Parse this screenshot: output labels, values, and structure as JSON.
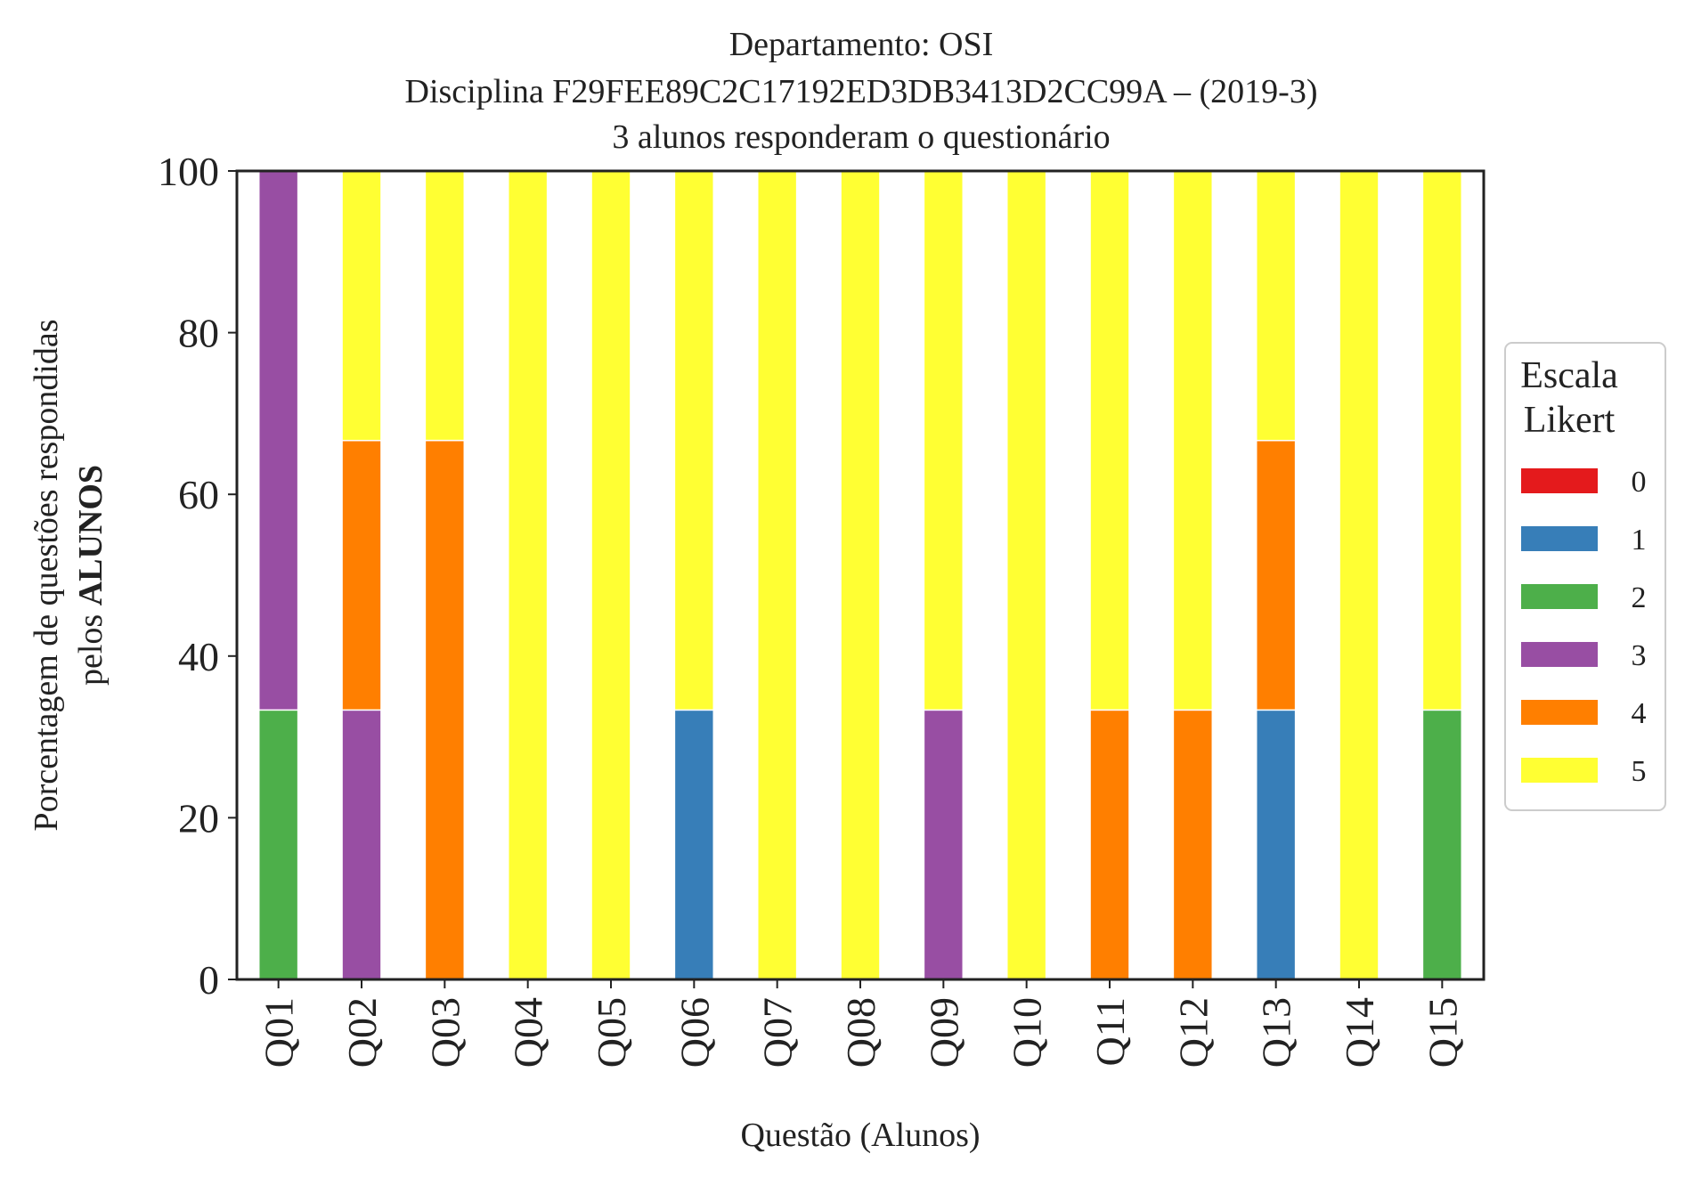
{
  "chart_data": {
    "type": "bar",
    "stacked": true,
    "title_lines": [
      "Departamento: OSI",
      "Disciplina F29FEE89C2C17192ED3DB3413D2CC99A – (2019-3)",
      "3 alunos responderam o questionário"
    ],
    "xlabel": "Questão (Alunos)",
    "ylabel_line1": "Porcentagem de questões respondidas",
    "ylabel_line2_prefix": "pelos ",
    "ylabel_line2_bold": "ALUNOS",
    "ylim": [
      0,
      100
    ],
    "yticks": [
      0,
      20,
      40,
      60,
      80,
      100
    ],
    "grid": false,
    "legend_placement": "center-right outside",
    "legend_title_lines": [
      "Escala",
      "Likert"
    ],
    "categories": [
      "Q01",
      "Q02",
      "Q03",
      "Q04",
      "Q05",
      "Q06",
      "Q07",
      "Q08",
      "Q09",
      "Q10",
      "Q11",
      "Q12",
      "Q13",
      "Q14",
      "Q15"
    ],
    "series": [
      {
        "name": "0",
        "color": "#e41a1c",
        "values": [
          0,
          0,
          0,
          0,
          0,
          0,
          0,
          0,
          0,
          0,
          0,
          0,
          0,
          0,
          0
        ]
      },
      {
        "name": "1",
        "color": "#377eb8",
        "values": [
          0,
          0,
          0,
          0,
          0,
          33.33,
          0,
          0,
          0,
          0,
          0,
          0,
          33.33,
          0,
          0
        ]
      },
      {
        "name": "2",
        "color": "#4daf4a",
        "values": [
          33.33,
          0,
          0,
          0,
          0,
          0,
          0,
          0,
          0,
          0,
          0,
          0,
          0,
          0,
          33.33
        ]
      },
      {
        "name": "3",
        "color": "#984ea3",
        "values": [
          66.67,
          33.33,
          0,
          0,
          0,
          0,
          0,
          0,
          33.33,
          0,
          0,
          0,
          0,
          0,
          0
        ]
      },
      {
        "name": "4",
        "color": "#ff7f00",
        "values": [
          0,
          33.33,
          66.67,
          0,
          0,
          0,
          0,
          0,
          0,
          0,
          33.33,
          33.33,
          33.33,
          0,
          0
        ]
      },
      {
        "name": "5",
        "color": "#ffff33",
        "values": [
          0,
          33.33,
          33.33,
          100,
          100,
          66.67,
          100,
          100,
          66.67,
          100,
          66.67,
          66.67,
          33.33,
          100,
          66.67
        ]
      }
    ]
  }
}
